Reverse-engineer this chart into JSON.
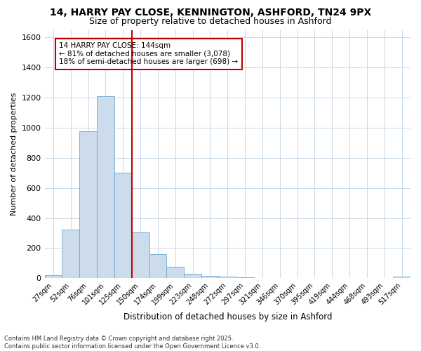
{
  "title_line1": "14, HARRY PAY CLOSE, KENNINGTON, ASHFORD, TN24 9PX",
  "title_line2": "Size of property relative to detached houses in Ashford",
  "xlabel": "Distribution of detached houses by size in Ashford",
  "ylabel": "Number of detached properties",
  "bar_labels": [
    "27sqm",
    "52sqm",
    "76sqm",
    "101sqm",
    "125sqm",
    "150sqm",
    "174sqm",
    "199sqm",
    "223sqm",
    "248sqm",
    "272sqm",
    "297sqm",
    "321sqm",
    "346sqm",
    "370sqm",
    "395sqm",
    "419sqm",
    "444sqm",
    "468sqm",
    "493sqm",
    "517sqm"
  ],
  "bar_values": [
    22,
    325,
    975,
    1210,
    700,
    305,
    160,
    78,
    28,
    15,
    10,
    5,
    3,
    2,
    1,
    1,
    0,
    0,
    0,
    0,
    12
  ],
  "bar_color": "#ccdcec",
  "bar_edge_color": "#6aaad4",
  "background_color": "#ffffff",
  "grid_color": "#c8d8e8",
  "vline_color": "#c00000",
  "annotation_text": "14 HARRY PAY CLOSE: 144sqm\n← 81% of detached houses are smaller (3,078)\n18% of semi-detached houses are larger (698) →",
  "annotation_box_color": "#ffffff",
  "annotation_box_edge": "#c00000",
  "ylim": [
    0,
    1650
  ],
  "yticks": [
    0,
    200,
    400,
    600,
    800,
    1000,
    1200,
    1400,
    1600
  ],
  "footer_line1": "Contains HM Land Registry data © Crown copyright and database right 2025.",
  "footer_line2": "Contains public sector information licensed under the Open Government Licence v3.0."
}
